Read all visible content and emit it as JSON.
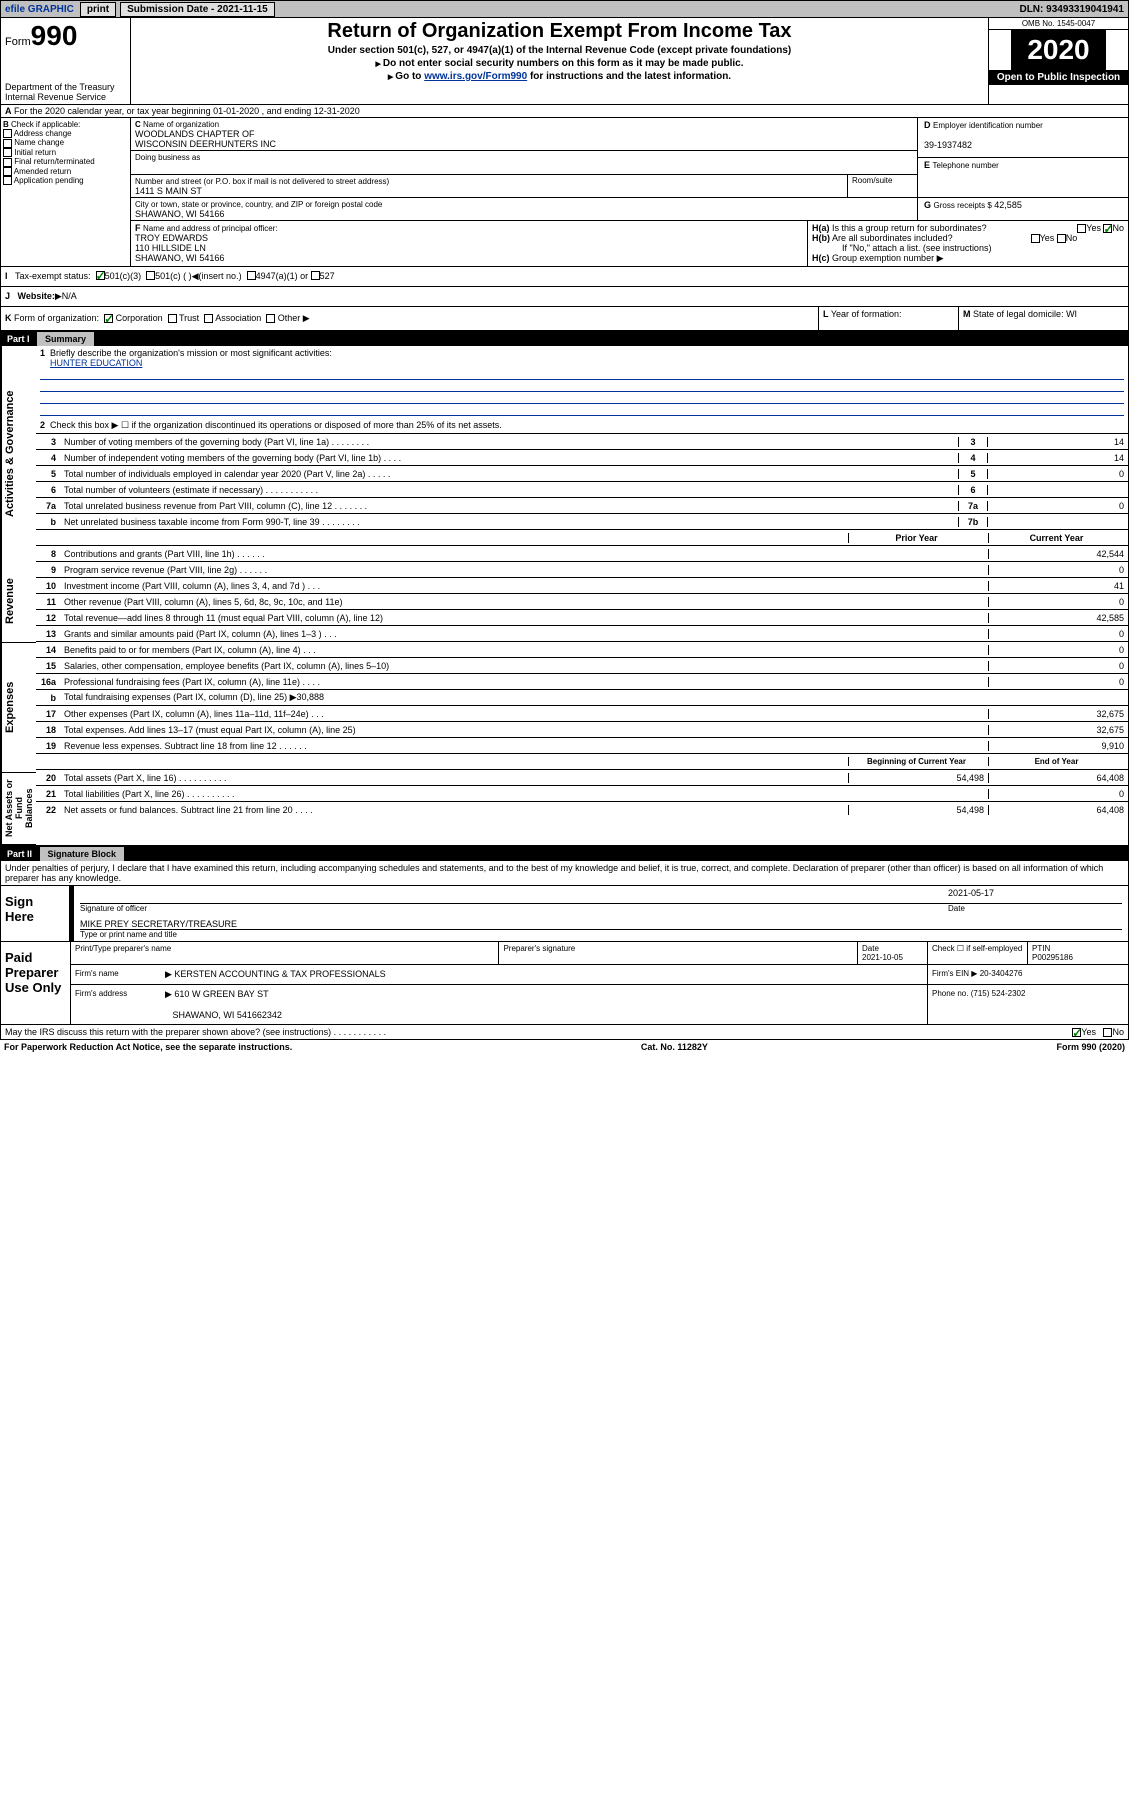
{
  "topbar": {
    "efile": "efile GRAPHIC",
    "print": "print",
    "subdate_label": "Submission Date - 2021-11-15",
    "dln": "DLN: 93493319041941"
  },
  "header": {
    "form": "Form",
    "num": "990",
    "dept": "Department of the Treasury",
    "irs": "Internal Revenue Service",
    "title": "Return of Organization Exempt From Income Tax",
    "sub1": "Under section 501(c), 527, or 4947(a)(1) of the Internal Revenue Code (except private foundations)",
    "sub2": "Do not enter social security numbers on this form as it may be made public.",
    "sub3": "Go to ",
    "link": "www.irs.gov/Form990",
    "sub3b": " for instructions and the latest information.",
    "omb": "OMB No. 1545-0047",
    "year": "2020",
    "open": "Open to Public Inspection"
  },
  "A": {
    "text": "For the 2020 calendar year, or tax year beginning 01-01-2020    , and ending 12-31-2020"
  },
  "B": {
    "label": "Check if applicable:",
    "items": [
      "Address change",
      "Name change",
      "Initial return",
      "Final return/terminated",
      "Amended return",
      "Application pending"
    ]
  },
  "C": {
    "name_label": "Name of organization",
    "name1": "WOODLANDS CHAPTER OF",
    "name2": "WISCONSIN DEERHUNTERS INC",
    "dba": "Doing business as",
    "street_label": "Number and street (or P.O. box if mail is not delivered to street address)",
    "room": "Room/suite",
    "street": "1411 S MAIN ST",
    "city_label": "City or town, state or province, country, and ZIP or foreign postal code",
    "city": "SHAWANO, WI  54166"
  },
  "D": {
    "label": "Employer identification number",
    "val": "39-1937482"
  },
  "E": {
    "label": "Telephone number"
  },
  "F": {
    "label": "Name and address of principal officer:",
    "name": "TROY EDWARDS",
    "l1": "110 HILLSIDE LN",
    "l2": "SHAWANO, WI  54166"
  },
  "G": {
    "label": "Gross receipts $",
    "val": "42,585"
  },
  "H": {
    "a": "Is this a group return for subordinates?",
    "b": "Are all subordinates included?",
    "note": "If \"No,\" attach a list. (see instructions)",
    "c": "Group exemption number"
  },
  "I": {
    "label": "Tax-exempt status:",
    "opts": [
      "501(c)(3)",
      "501(c) (  )",
      "(insert no.)",
      "4947(a)(1) or",
      "527"
    ]
  },
  "J": {
    "label": "Website:",
    "val": "N/A"
  },
  "K": {
    "label": "Form of organization:",
    "opts": [
      "Corporation",
      "Trust",
      "Association",
      "Other"
    ]
  },
  "L": {
    "label": "Year of formation:"
  },
  "M": {
    "label": "State of legal domicile: WI"
  },
  "part1": {
    "title": "Part I",
    "sub": "Summary",
    "vlabels": [
      "Activities & Governance",
      "Revenue",
      "Expenses",
      "Net Assets or Fund Balances"
    ],
    "l1": "Briefly describe the organization's mission or most significant activities:",
    "mission": "HUNTER EDUCATION",
    "l2": "Check this box ▶ ☐  if the organization discontinued its operations or disposed of more than 25% of its net assets.",
    "gov": [
      {
        "n": "3",
        "t": "Number of voting members of the governing body (Part VI, line 1a)   .    .    .    .    .    .    .    .",
        "c": "3",
        "v": "14"
      },
      {
        "n": "4",
        "t": "Number of independent voting members of the governing body (Part VI, line 1b)    .    .    .    .",
        "c": "4",
        "v": "14"
      },
      {
        "n": "5",
        "t": "Total number of individuals employed in calendar year 2020 (Part V, line 2a)    .    .    .    .    .",
        "c": "5",
        "v": "0"
      },
      {
        "n": "6",
        "t": "Total number of volunteers (estimate if necessary)    .    .    .    .    .    .    .    .    .    .    .",
        "c": "6",
        "v": ""
      },
      {
        "n": "7a",
        "t": "Total unrelated business revenue from Part VIII, column (C), line 12    .    .    .    .    .    .    .",
        "c": "7a",
        "v": "0"
      },
      {
        "n": "b",
        "t": "Net unrelated business taxable income from Form 990-T, line 39    .    .    .    .    .    .    .    .",
        "c": "7b",
        "v": ""
      }
    ],
    "hdr_prior": "Prior Year",
    "hdr_curr": "Current Year",
    "rev": [
      {
        "n": "8",
        "t": "Contributions and grants (Part VIII, line 1h)    .    .    .    .    .    .",
        "p": "",
        "c": "42,544"
      },
      {
        "n": "9",
        "t": "Program service revenue (Part VIII, line 2g)    .    .    .    .    .    .",
        "p": "",
        "c": "0"
      },
      {
        "n": "10",
        "t": "Investment income (Part VIII, column (A), lines 3, 4, and 7d )    .    .    .",
        "p": "",
        "c": "41"
      },
      {
        "n": "11",
        "t": "Other revenue (Part VIII, column (A), lines 5, 6d, 8c, 9c, 10c, and 11e)",
        "p": "",
        "c": "0"
      },
      {
        "n": "12",
        "t": "Total revenue—add lines 8 through 11 (must equal Part VIII, column (A), line 12)",
        "p": "",
        "c": "42,585"
      }
    ],
    "exp": [
      {
        "n": "13",
        "t": "Grants and similar amounts paid (Part IX, column (A), lines 1–3 )    .    .    .",
        "p": "",
        "c": "0"
      },
      {
        "n": "14",
        "t": "Benefits paid to or for members (Part IX, column (A), line 4)    .    .    .",
        "p": "",
        "c": "0"
      },
      {
        "n": "15",
        "t": "Salaries, other compensation, employee benefits (Part IX, column (A), lines 5–10)",
        "p": "",
        "c": "0"
      },
      {
        "n": "16a",
        "t": "Professional fundraising fees (Part IX, column (A), line 11e)    .    .    .    .",
        "p": "",
        "c": "0"
      },
      {
        "n": "b",
        "t": "Total fundraising expenses (Part IX, column (D), line 25) ▶30,888",
        "p": "gray",
        "c": "gray"
      },
      {
        "n": "17",
        "t": "Other expenses (Part IX, column (A), lines 11a–11d, 11f–24e)    .    .    .",
        "p": "",
        "c": "32,675"
      },
      {
        "n": "18",
        "t": "Total expenses. Add lines 13–17 (must equal Part IX, column (A), line 25)",
        "p": "",
        "c": "32,675"
      },
      {
        "n": "19",
        "t": "Revenue less expenses. Subtract line 18 from line 12    .    .    .    .    .    .",
        "p": "",
        "c": "9,910"
      }
    ],
    "hdr_beg": "Beginning of Current Year",
    "hdr_end": "End of Year",
    "net": [
      {
        "n": "20",
        "t": "Total assets (Part X, line 16)    .    .    .    .    .    .    .    .    .    .",
        "p": "54,498",
        "c": "64,408"
      },
      {
        "n": "21",
        "t": "Total liabilities (Part X, line 26)    .    .    .    .    .    .    .    .    .    .",
        "p": "",
        "c": "0"
      },
      {
        "n": "22",
        "t": "Net assets or fund balances. Subtract line 21 from line 20    .    .    .    .",
        "p": "54,498",
        "c": "64,408"
      }
    ]
  },
  "part2": {
    "title": "Part II",
    "sub": "Signature Block",
    "decl": "Under penalties of perjury, I declare that I have examined this return, including accompanying schedules and statements, and to the best of my knowledge and belief, it is true, correct, and complete. Declaration of preparer (other than officer) is based on all information of which preparer has any knowledge.",
    "sign_here": "Sign Here",
    "sig_officer": "Signature of officer",
    "date_lbl": "Date",
    "date": "2021-05-17",
    "officer": "MIKE PREY  SECRETARY/TREASURE",
    "type_lbl": "Type or print name and title",
    "paid": "Paid Preparer Use Only",
    "prep_name_lbl": "Print/Type preparer's name",
    "prep_sig_lbl": "Preparer's signature",
    "prep_date_lbl": "Date",
    "prep_date": "2021-10-05",
    "check_lbl": "Check ☐ if self-employed",
    "ptin_lbl": "PTIN",
    "ptin": "P00295186",
    "firm_name_lbl": "Firm's name",
    "firm_name": "KERSTEN ACCOUNTING & TAX PROFESSIONALS",
    "firm_ein_lbl": "Firm's EIN",
    "firm_ein": "20-3404276",
    "firm_addr_lbl": "Firm's address",
    "firm_addr1": "610 W GREEN BAY ST",
    "firm_addr2": "SHAWANO, WI  541662342",
    "phone_lbl": "Phone no.",
    "phone": "(715) 524-2302",
    "discuss": "May the IRS discuss this return with the preparer shown above? (see instructions)    .    .    .    .    .    .    .    .    .    .    ."
  },
  "footer": {
    "l": "For Paperwork Reduction Act Notice, see the separate instructions.",
    "c": "Cat. No. 11282Y",
    "r": "Form 990 (2020)"
  }
}
